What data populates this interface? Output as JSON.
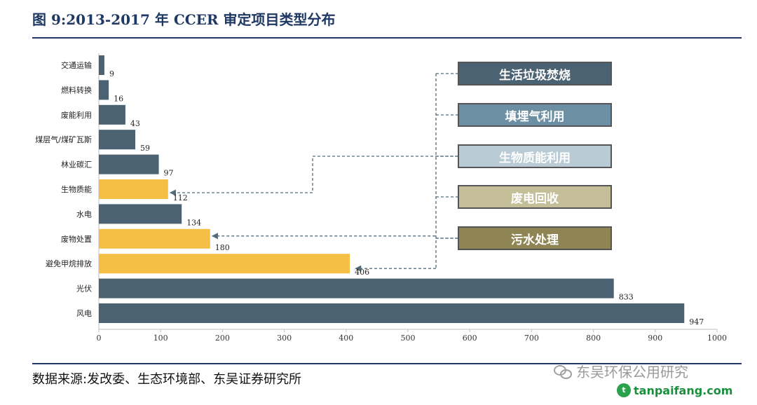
{
  "header": {
    "title": "图 9:2013-2017 年 CCER 审定项目类型分布"
  },
  "footer": {
    "source": "数据来源:发改委、生态环境部、东吴证券研究所",
    "watermark": "东吴环保公用研究",
    "site": "tanpaifang.com"
  },
  "colors": {
    "default_bar": "#4a6272",
    "highlight_bar": "#f5bf45",
    "axis": "#bfbfbf",
    "connector": "#556b7a"
  },
  "legend": [
    {
      "label": "生活垃圾焚烧",
      "color": "#4a6272"
    },
    {
      "label": "填埋气利用",
      "color": "#6d8fa3"
    },
    {
      "label": "生物质能利用",
      "color": "#b9cbd5"
    },
    {
      "label": "废电回收",
      "color": "#c5bf99"
    },
    {
      "label": "污水处理",
      "color": "#8f8454"
    }
  ],
  "chart_data": {
    "type": "bar",
    "orientation": "horizontal",
    "title": "",
    "xlabel": "",
    "ylabel": "",
    "xlim": [
      0,
      1000
    ],
    "xticks": [
      0,
      100,
      200,
      300,
      400,
      500,
      600,
      700,
      800,
      900,
      1000
    ],
    "categories": [
      "交通运输",
      "燃料转换",
      "废能利用",
      "煤层气/煤矿瓦斯",
      "林业碳汇",
      "生物质能",
      "水电",
      "废物处置",
      "避免甲烷排放",
      "光伏",
      "风电"
    ],
    "values": [
      9,
      16,
      43,
      59,
      97,
      112,
      134,
      180,
      406,
      833,
      947
    ],
    "highlighted": [
      "生物质能",
      "废物处置",
      "避免甲烷排放"
    ],
    "grid": false,
    "legend_placement": "right"
  }
}
